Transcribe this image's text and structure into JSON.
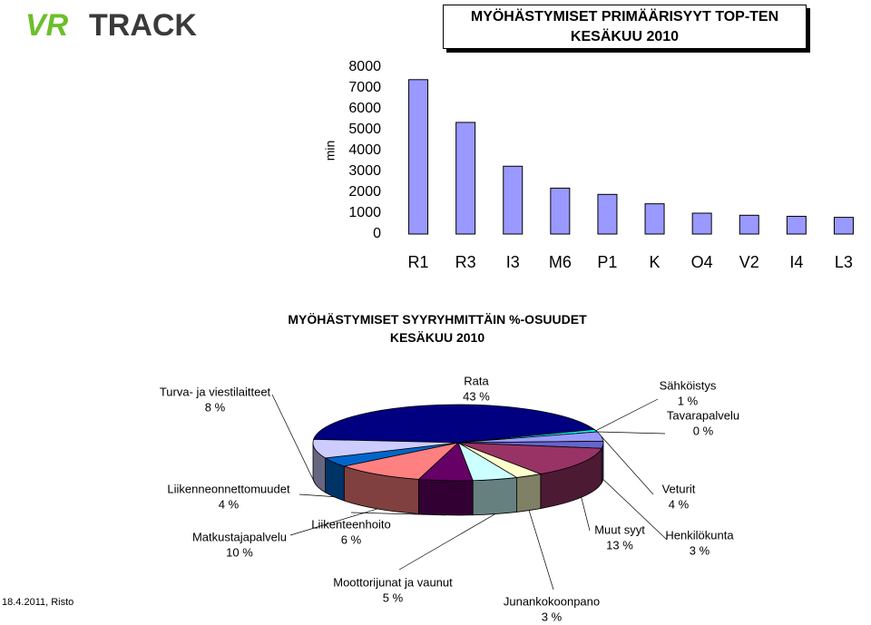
{
  "logo": {
    "left": "VR",
    "right": "TRACK"
  },
  "footer": "18.4.2011, Risto",
  "chart_data": [
    {
      "type": "bar",
      "title": "MYÖHÄSTYMISET PRIMÄÄRISYYT TOP-TEN KESÄKUU 2010",
      "ylabel": "min",
      "categories": [
        "R1",
        "R3",
        "I3",
        "M6",
        "P1",
        "K",
        "O4",
        "V2",
        "I4",
        "L3"
      ],
      "values": [
        7400,
        5350,
        3250,
        2200,
        1900,
        1450,
        1000,
        900,
        850,
        800
      ],
      "color": "#9999ff",
      "ylim": [
        0,
        8000
      ],
      "yticks": [
        0,
        1000,
        2000,
        3000,
        4000,
        5000,
        6000,
        7000,
        8000
      ]
    },
    {
      "type": "pie",
      "title": "MYÖHÄSTYMISET SYYRYHMITTÄIN %-OSUUDET KESÄKUU 2010",
      "labels": [
        "Rata",
        "Sähköistys",
        "Tavarapalvelu",
        "Veturit",
        "Henkilökunta",
        "Muut syyt",
        "Junankokoonpano",
        "Moottorijunat ja vaunut",
        "Liikenteenhoito",
        "Matkustajapalvelu",
        "Liikenneonnettomuudet",
        "Turva- ja viestilaitteet"
      ],
      "values": [
        43,
        1,
        0,
        4,
        3,
        13,
        3,
        5,
        6,
        10,
        4,
        8
      ],
      "value_labels": [
        "43 %",
        "1 %",
        "0 %",
        "4 %",
        "3 %",
        "13 %",
        "3 %",
        "5 %",
        "6 %",
        "10 %",
        "4 %",
        "8 %"
      ],
      "colors": [
        "#000080",
        "#00ffff",
        "#ccccff",
        "#9999ff",
        "#6666cc",
        "#993366",
        "#ffffcc",
        "#ccffff",
        "#660066",
        "#ff8080",
        "#0066cc",
        "#ccccff"
      ]
    }
  ]
}
